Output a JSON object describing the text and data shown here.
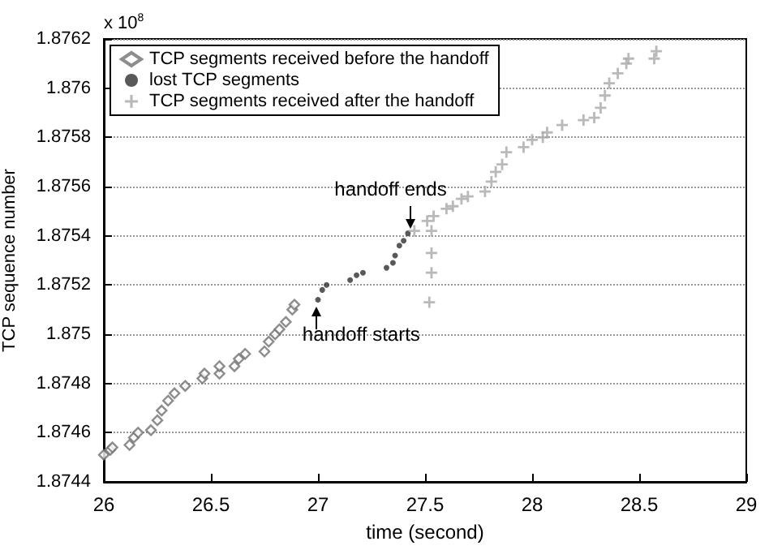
{
  "chart_data": {
    "type": "scatter",
    "xlabel": "time (second)",
    "ylabel": "TCP sequence number",
    "xlim": [
      26,
      29
    ],
    "xticks": [
      26,
      26.5,
      27,
      27.5,
      28,
      28.5,
      29
    ],
    "ylim": [
      1.8744,
      1.8762
    ],
    "yticks": [
      1.8744,
      1.8746,
      1.8748,
      1.875,
      1.8752,
      1.8754,
      1.8756,
      1.8758,
      1.876,
      1.8762
    ],
    "grid": "y",
    "legend": "top left",
    "annotations": [
      "x 10$^{8}$",
      {
        "text": "handoff ends",
        "x": 27.43,
        "y": 1.87541
      },
      {
        "text": "handoff starts",
        "x": 26.99,
        "y": 1.87513
      }
    ],
    "series": [
      {
        "name": "TCP segments received before the handoff",
        "color": "#707070",
        "marker": "diamond",
        "x": [
          26.0,
          26.03,
          26.04,
          26.12,
          26.14,
          26.16,
          26.22,
          26.25,
          26.27,
          26.3,
          26.33,
          26.38,
          26.46,
          26.47,
          26.54,
          26.54,
          26.61,
          26.63,
          26.66,
          26.75,
          26.77,
          26.8,
          26.82,
          26.85,
          26.88,
          26.89
        ],
        "values": [
          1.87451,
          1.87453,
          1.87454,
          1.87455,
          1.87458,
          1.8746,
          1.87461,
          1.87465,
          1.87469,
          1.87473,
          1.87476,
          1.87479,
          1.87482,
          1.87484,
          1.87484,
          1.87487,
          1.87487,
          1.8749,
          1.87492,
          1.87493,
          1.87497,
          1.875,
          1.87502,
          1.87505,
          1.8751,
          1.87512
        ]
      },
      {
        "name": "lost TCP segments",
        "color": "#303030",
        "marker": "circle",
        "x": [
          27.0,
          27.02,
          27.04,
          27.15,
          27.18,
          27.21,
          27.32,
          27.35,
          27.36,
          27.38,
          27.4,
          27.42
        ],
        "values": [
          1.87514,
          1.87518,
          1.8752,
          1.87522,
          1.87524,
          1.87525,
          1.87527,
          1.87529,
          1.87532,
          1.87536,
          1.87538,
          1.87541
        ]
      },
      {
        "name": "TCP segments received after the handoff",
        "color": "#a8a8a8",
        "marker": "cross",
        "x": [
          27.45,
          27.51,
          27.53,
          27.53,
          27.53,
          27.52,
          27.54,
          27.6,
          27.63,
          27.67,
          27.7,
          27.78,
          27.81,
          27.83,
          27.86,
          27.88,
          27.96,
          28.0,
          28.05,
          28.07,
          28.14,
          28.24,
          28.29,
          28.32,
          28.34,
          28.36,
          28.4,
          28.44,
          28.45,
          28.57,
          28.58
        ],
        "values": [
          1.87542,
          1.87546,
          1.87542,
          1.87533,
          1.87525,
          1.87513,
          1.87548,
          1.87551,
          1.87552,
          1.87555,
          1.87556,
          1.87558,
          1.87562,
          1.87566,
          1.87569,
          1.87574,
          1.87576,
          1.87579,
          1.8758,
          1.87582,
          1.87585,
          1.87587,
          1.87588,
          1.87592,
          1.87597,
          1.87602,
          1.87606,
          1.8761,
          1.87612,
          1.87612,
          1.87615
        ]
      }
    ]
  }
}
